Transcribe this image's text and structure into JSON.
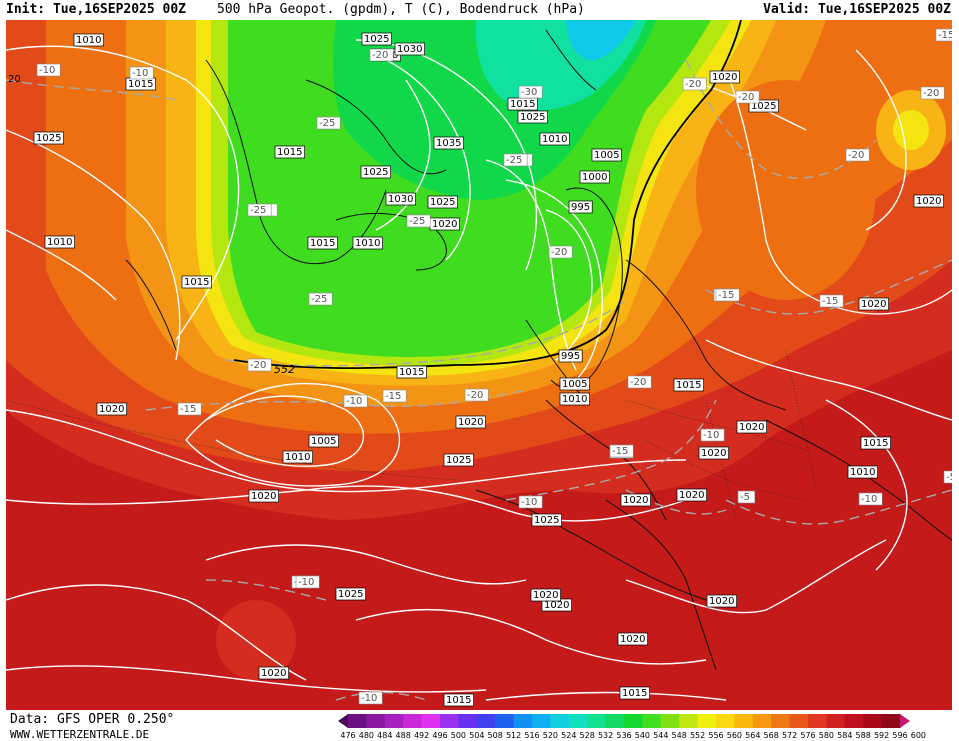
{
  "header": {
    "init": "Init: Tue,16SEP2025 00Z",
    "title": "500 hPa Geopot. (gpdm), T (C), Bodendruck (hPa)",
    "valid": "Valid: Tue,16SEP2025 00Z"
  },
  "footer": {
    "data_source": "Data: GFS OPER 0.250°",
    "website": "WWW.WETTERZENTRALE.DE"
  },
  "colorbar": {
    "labels": [
      "476",
      "480",
      "484",
      "488",
      "492",
      "496",
      "500",
      "504",
      "508",
      "512",
      "516",
      "520",
      "524",
      "528",
      "532",
      "536",
      "540",
      "544",
      "548",
      "552",
      "556",
      "560",
      "564",
      "568",
      "572",
      "576",
      "580",
      "584",
      "588",
      "592",
      "596",
      "600"
    ],
    "colors": [
      "#4b0a5a",
      "#6a1080",
      "#8a18a0",
      "#a820c0",
      "#c828d8",
      "#e030f0",
      "#9a30f0",
      "#6a30f0",
      "#4040f0",
      "#2060f0",
      "#1090f0",
      "#10b0f0",
      "#10d0e0",
      "#10e0c0",
      "#10e090",
      "#10d860",
      "#10d830",
      "#40e020",
      "#80e010",
      "#c0e810",
      "#f0f010",
      "#f8d810",
      "#f8b810",
      "#f89810",
      "#f07810",
      "#e85818",
      "#e03820",
      "#d02020",
      "#c01020",
      "#a80818",
      "#900818",
      "#c81870"
    ]
  },
  "isobar_labels": [
    {
      "id": "i1",
      "text": "1010"
    },
    {
      "id": "i2",
      "text": "1025"
    },
    {
      "id": "i3",
      "text": "1020"
    },
    {
      "id": "i4",
      "text": "1030"
    },
    {
      "id": "i5",
      "text": "1015"
    },
    {
      "id": "i6",
      "text": "1025"
    },
    {
      "id": "i7",
      "text": "1015"
    },
    {
      "id": "i8",
      "text": "1010"
    },
    {
      "id": "i9",
      "text": "1035"
    },
    {
      "id": "i10",
      "text": "1025"
    },
    {
      "id": "i11",
      "text": "1030"
    },
    {
      "id": "i12",
      "text": "1025"
    },
    {
      "id": "i13",
      "text": "1020"
    },
    {
      "id": "i14",
      "text": "1015"
    },
    {
      "id": "i15",
      "text": "1010"
    },
    {
      "id": "i16",
      "text": "1005"
    },
    {
      "id": "i17",
      "text": "1000"
    },
    {
      "id": "i18",
      "text": "995"
    },
    {
      "id": "i19",
      "text": "1020"
    },
    {
      "id": "i20",
      "text": "1025"
    },
    {
      "id": "i21",
      "text": "1020"
    },
    {
      "id": "i22",
      "text": "1025"
    },
    {
      "id": "i23",
      "text": "1015"
    },
    {
      "id": "i24",
      "text": "1015"
    },
    {
      "id": "i25",
      "text": "1020"
    },
    {
      "id": "i26",
      "text": "995"
    },
    {
      "id": "i27",
      "text": "1005"
    },
    {
      "id": "i28",
      "text": "1010"
    },
    {
      "id": "i29",
      "text": "1015"
    },
    {
      "id": "i30",
      "text": "1020"
    },
    {
      "id": "i31",
      "text": "1005"
    },
    {
      "id": "i32",
      "text": "1010"
    },
    {
      "id": "i33",
      "text": "1020"
    },
    {
      "id": "i34",
      "text": "1025"
    },
    {
      "id": "i35",
      "text": "1015"
    },
    {
      "id": "i36",
      "text": "1020"
    },
    {
      "id": "i37",
      "text": "1020"
    },
    {
      "id": "i38",
      "text": "1020"
    },
    {
      "id": "i39",
      "text": "1025"
    },
    {
      "id": "i40",
      "text": "1020"
    },
    {
      "id": "i41",
      "text": "1020"
    },
    {
      "id": "i42",
      "text": "1015"
    },
    {
      "id": "i43",
      "text": "1010"
    },
    {
      "id": "i44",
      "text": "1025"
    },
    {
      "id": "i45",
      "text": "1020"
    },
    {
      "id": "i46",
      "text": "1020"
    },
    {
      "id": "i47",
      "text": "1020"
    },
    {
      "id": "i48",
      "text": "1020"
    },
    {
      "id": "i49",
      "text": "1020"
    },
    {
      "id": "i50",
      "text": "1015"
    },
    {
      "id": "i51",
      "text": "1015"
    },
    {
      "id": "i52",
      "text": "1010"
    }
  ],
  "temp_labels": [
    {
      "id": "t1",
      "text": "-10"
    },
    {
      "id": "t2",
      "text": "-10"
    },
    {
      "id": "t3",
      "text": "-20"
    },
    {
      "id": "t4",
      "text": "-25"
    },
    {
      "id": "t5",
      "text": "-25"
    },
    {
      "id": "t6",
      "text": "-25"
    },
    {
      "id": "t7",
      "text": "-30"
    },
    {
      "id": "t8",
      "text": "-25"
    },
    {
      "id": "t9",
      "text": "-25"
    },
    {
      "id": "t10",
      "text": "-25"
    },
    {
      "id": "t11",
      "text": "-20"
    },
    {
      "id": "t12",
      "text": "-25"
    },
    {
      "id": "t13",
      "text": "-20"
    },
    {
      "id": "t14",
      "text": "-15"
    },
    {
      "id": "t15",
      "text": "-10"
    },
    {
      "id": "t16",
      "text": "-15"
    },
    {
      "id": "t17",
      "text": "-20"
    },
    {
      "id": "t18",
      "text": "-20"
    },
    {
      "id": "t19",
      "text": "-15"
    },
    {
      "id": "t20",
      "text": "-15"
    },
    {
      "id": "t21",
      "text": "-10"
    },
    {
      "id": "t22",
      "text": "-15"
    },
    {
      "id": "t23",
      "text": "-10"
    },
    {
      "id": "t24",
      "text": "-5"
    },
    {
      "id": "t25",
      "text": "-10"
    },
    {
      "id": "t26",
      "text": "-10"
    },
    {
      "id": "t27",
      "text": "-10"
    },
    {
      "id": "t28",
      "text": "-20"
    },
    {
      "id": "t29",
      "text": "-20"
    },
    {
      "id": "t30",
      "text": "-20"
    },
    {
      "id": "t31",
      "text": "-15"
    },
    {
      "id": "t32",
      "text": "-15"
    },
    {
      "id": "t33",
      "text": "-5"
    },
    {
      "id": "t34",
      "text": "-10"
    },
    {
      "id": "t35",
      "text": "-15"
    },
    {
      "id": "t36",
      "text": "-20"
    }
  ],
  "geopot_label": {
    "text": "552"
  },
  "edge_labels": {
    "left_20": "20"
  }
}
